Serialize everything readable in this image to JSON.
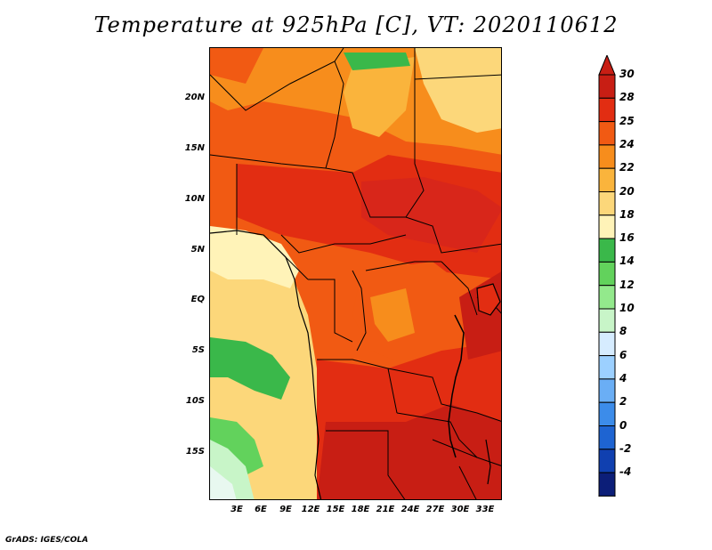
{
  "title": "Temperature at 925hPa [C], VT: 2020110612",
  "footer": "GrADS: IGES/COLA",
  "y_axis_labels": [
    "20N",
    "15N",
    "10N",
    "5N",
    "EQ",
    "5S",
    "10S",
    "15S"
  ],
  "x_axis_labels": [
    "3E",
    "6E",
    "9E",
    "12E",
    "15E",
    "18E",
    "21E",
    "24E",
    "27E",
    "30E",
    "33E"
  ],
  "legend": {
    "labels": [
      "30",
      "28",
      "25",
      "24",
      "22",
      "20",
      "18",
      "16",
      "14",
      "12",
      "10",
      "8",
      "6",
      "4",
      "2",
      "0",
      "-2",
      "-4"
    ],
    "colors": [
      "#c81e14",
      "#e22d12",
      "#f15a13",
      "#f78d1c",
      "#fab43c",
      "#fcd77a",
      "#fff3b8",
      "#3ab84a",
      "#62d25c",
      "#93e98c",
      "#c8f5c8",
      "#d6ecff",
      "#9cd0ff",
      "#6aaef5",
      "#3c8cea",
      "#1e64d2",
      "#1040b0",
      "#0c1e78"
    ],
    "top_arrow_color": "#c81e14",
    "bottom_arrow_color": "#e0e0f5"
  }
}
